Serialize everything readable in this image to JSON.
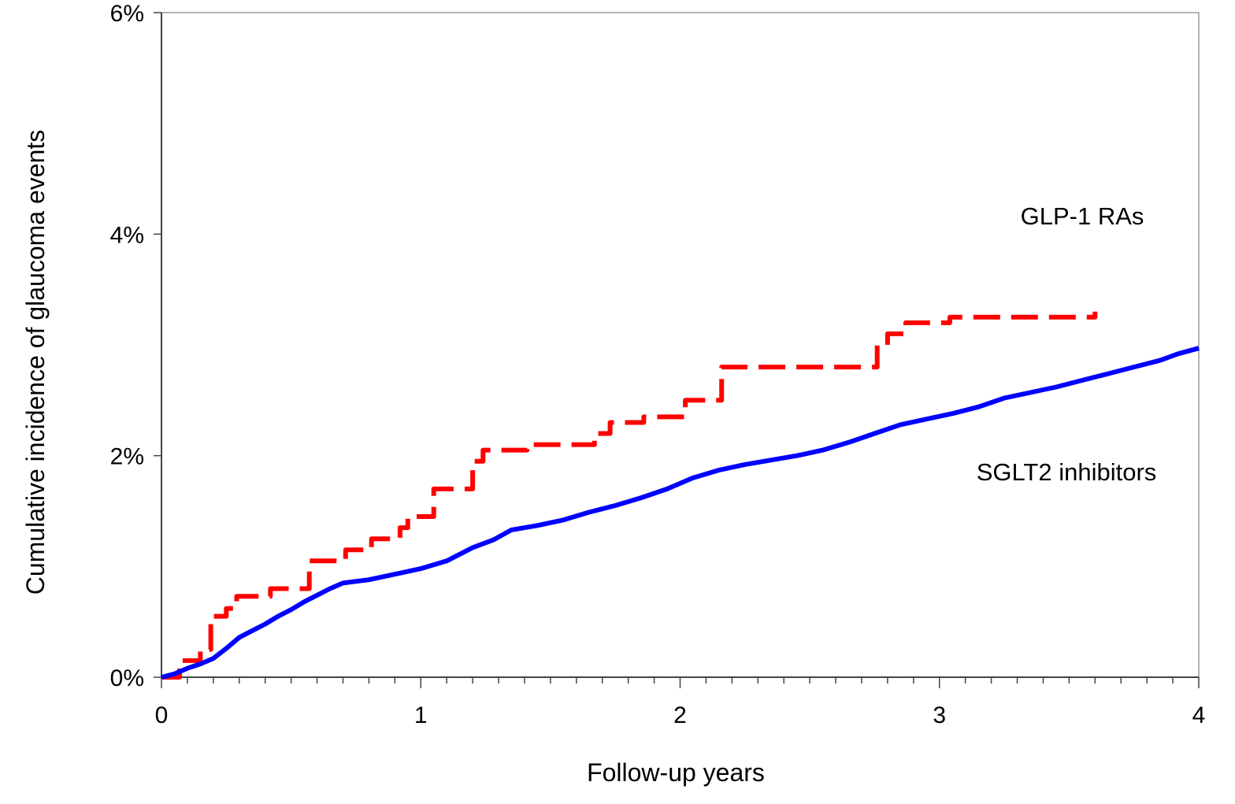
{
  "chart_data": {
    "type": "line",
    "title": "",
    "xlabel": "Follow-up years",
    "ylabel": "Cumulative incidence of glaucoma events",
    "xlim": [
      0,
      4
    ],
    "ylim": [
      0,
      6
    ],
    "x_ticks": [
      0,
      1,
      2,
      3,
      4
    ],
    "x_tick_labels": [
      "0",
      "1",
      "2",
      "3",
      "4"
    ],
    "y_ticks": [
      0,
      2,
      4,
      6
    ],
    "y_tick_labels": [
      "0%",
      "2%",
      "4%",
      "6%"
    ],
    "grid": false,
    "legend": "none",
    "annotations": [
      {
        "text": "GLP-1 RAs",
        "series": "GLP-1 RAs"
      },
      {
        "text": "SGLT2 inhibitors",
        "series": "SGLT2 inhibitors"
      }
    ],
    "series": [
      {
        "name": "GLP-1 RAs",
        "color": "#ff0000",
        "style": "dashed-step",
        "points": [
          [
            0.0,
            0.0
          ],
          [
            0.07,
            0.0
          ],
          [
            0.07,
            0.15
          ],
          [
            0.15,
            0.15
          ],
          [
            0.15,
            0.25
          ],
          [
            0.19,
            0.25
          ],
          [
            0.19,
            0.55
          ],
          [
            0.25,
            0.55
          ],
          [
            0.25,
            0.62
          ],
          [
            0.29,
            0.62
          ],
          [
            0.29,
            0.73
          ],
          [
            0.42,
            0.73
          ],
          [
            0.42,
            0.8
          ],
          [
            0.57,
            0.8
          ],
          [
            0.57,
            1.05
          ],
          [
            0.71,
            1.05
          ],
          [
            0.71,
            1.15
          ],
          [
            0.81,
            1.15
          ],
          [
            0.81,
            1.25
          ],
          [
            0.92,
            1.25
          ],
          [
            0.92,
            1.35
          ],
          [
            0.95,
            1.35
          ],
          [
            0.95,
            1.45
          ],
          [
            1.05,
            1.45
          ],
          [
            1.05,
            1.7
          ],
          [
            1.2,
            1.7
          ],
          [
            1.2,
            1.95
          ],
          [
            1.24,
            1.95
          ],
          [
            1.24,
            2.05
          ],
          [
            1.41,
            2.05
          ],
          [
            1.41,
            2.1
          ],
          [
            1.67,
            2.1
          ],
          [
            1.67,
            2.2
          ],
          [
            1.73,
            2.2
          ],
          [
            1.73,
            2.3
          ],
          [
            1.86,
            2.3
          ],
          [
            1.86,
            2.35
          ],
          [
            2.02,
            2.35
          ],
          [
            2.02,
            2.5
          ],
          [
            2.16,
            2.5
          ],
          [
            2.16,
            2.8
          ],
          [
            2.76,
            2.8
          ],
          [
            2.76,
            3.0
          ],
          [
            2.8,
            3.0
          ],
          [
            2.8,
            3.1
          ],
          [
            2.87,
            3.1
          ],
          [
            2.87,
            3.2
          ],
          [
            3.04,
            3.2
          ],
          [
            3.04,
            3.25
          ],
          [
            3.6,
            3.25
          ],
          [
            3.6,
            3.3
          ]
        ]
      },
      {
        "name": "SGLT2 inhibitors",
        "color": "#0000ff",
        "style": "solid",
        "points": [
          [
            0.0,
            0.0
          ],
          [
            0.05,
            0.03
          ],
          [
            0.1,
            0.08
          ],
          [
            0.15,
            0.12
          ],
          [
            0.2,
            0.17
          ],
          [
            0.25,
            0.26
          ],
          [
            0.3,
            0.36
          ],
          [
            0.35,
            0.42
          ],
          [
            0.4,
            0.48
          ],
          [
            0.45,
            0.55
          ],
          [
            0.5,
            0.61
          ],
          [
            0.55,
            0.68
          ],
          [
            0.6,
            0.74
          ],
          [
            0.65,
            0.8
          ],
          [
            0.7,
            0.85
          ],
          [
            0.8,
            0.88
          ],
          [
            0.9,
            0.93
          ],
          [
            1.0,
            0.98
          ],
          [
            1.1,
            1.05
          ],
          [
            1.2,
            1.17
          ],
          [
            1.28,
            1.24
          ],
          [
            1.35,
            1.33
          ],
          [
            1.45,
            1.37
          ],
          [
            1.55,
            1.42
          ],
          [
            1.65,
            1.49
          ],
          [
            1.75,
            1.55
          ],
          [
            1.85,
            1.62
          ],
          [
            1.95,
            1.7
          ],
          [
            2.05,
            1.8
          ],
          [
            2.15,
            1.87
          ],
          [
            2.25,
            1.92
          ],
          [
            2.35,
            1.96
          ],
          [
            2.45,
            2.0
          ],
          [
            2.55,
            2.05
          ],
          [
            2.65,
            2.12
          ],
          [
            2.75,
            2.2
          ],
          [
            2.85,
            2.28
          ],
          [
            2.95,
            2.33
          ],
          [
            3.05,
            2.38
          ],
          [
            3.15,
            2.44
          ],
          [
            3.25,
            2.52
          ],
          [
            3.35,
            2.57
          ],
          [
            3.45,
            2.62
          ],
          [
            3.55,
            2.68
          ],
          [
            3.65,
            2.74
          ],
          [
            3.75,
            2.8
          ],
          [
            3.85,
            2.86
          ],
          [
            3.92,
            2.92
          ],
          [
            4.0,
            2.97
          ]
        ]
      }
    ]
  }
}
